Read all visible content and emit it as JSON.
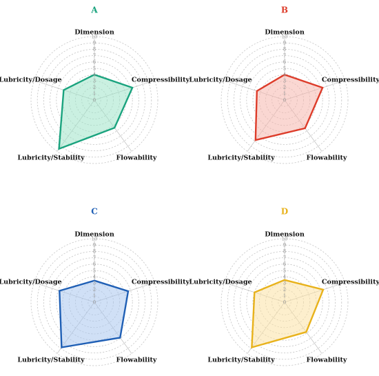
{
  "chart_data": [
    {
      "type": "radar",
      "title": "A",
      "color": "#1aa37e",
      "fill": "#9fe3c9",
      "axes": [
        "Dimension",
        "Compressibility",
        "Flowability",
        "Lubricity/Stability",
        "Lubricity/Dosage"
      ],
      "ticks": [
        "0",
        "1",
        "2",
        "3",
        "4",
        "5",
        "6",
        "7",
        "8",
        "9",
        "10"
      ],
      "range": [
        0,
        10
      ],
      "grid": true,
      "values": [
        4,
        6.3,
        5.4,
        9.5,
        5.1
      ]
    },
    {
      "type": "radar",
      "title": "B",
      "color": "#dd3c2a",
      "fill": "#f6b6ad",
      "axes": [
        "Dimension",
        "Compressibility",
        "Flowability",
        "Lubricity/Stability",
        "Lubricity/Dosage"
      ],
      "ticks": [
        "0",
        "1",
        "2",
        "3",
        "4",
        "5",
        "6",
        "7",
        "8",
        "9",
        "10"
      ],
      "range": [
        0,
        10
      ],
      "grid": true,
      "values": [
        4,
        6.3,
        5.5,
        7.8,
        4.6
      ]
    },
    {
      "type": "radar",
      "title": "C",
      "color": "#1f5fb5",
      "fill": "#a9c6ef",
      "axes": [
        "Dimension",
        "Compressibility",
        "Flowability",
        "Lubricity/Stability",
        "Lubricity/Dosage"
      ],
      "ticks": [
        "0",
        "1",
        "2",
        "3",
        "4",
        "5",
        "6",
        "7",
        "8",
        "9",
        "10"
      ],
      "range": [
        0,
        10
      ],
      "grid": true,
      "values": [
        3.4,
        5.6,
        6.9,
        8.8,
        5.8
      ]
    },
    {
      "type": "radar",
      "title": "D",
      "color": "#e8b21b",
      "fill": "#fbe2a4",
      "axes": [
        "Dimension",
        "Compressibility",
        "Flowability",
        "Lubricity/Stability",
        "Lubricity/Dosage"
      ],
      "ticks": [
        "0",
        "1",
        "2",
        "3",
        "4",
        "5",
        "6",
        "7",
        "8",
        "9",
        "10"
      ],
      "range": [
        0,
        10
      ],
      "grid": true,
      "values": [
        3.5,
        6.4,
        5.8,
        8.8,
        5
      ]
    }
  ]
}
